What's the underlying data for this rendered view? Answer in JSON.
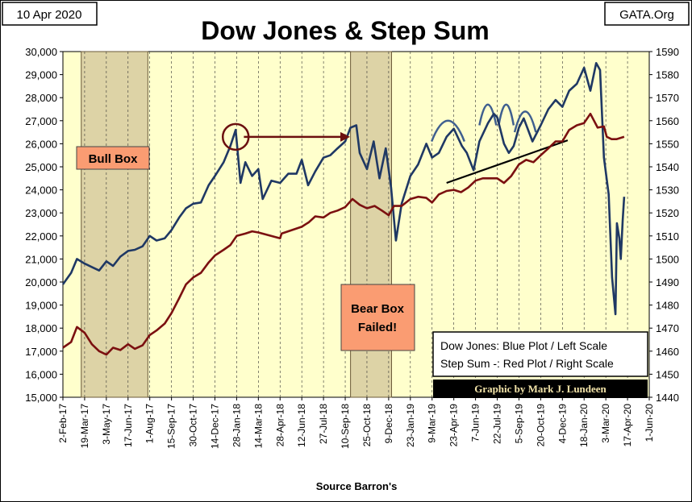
{
  "chart_data": {
    "type": "line",
    "title": "Dow Jones & Step Sum",
    "date_label": "10 Apr 2020",
    "source_badge": "GATA.Org",
    "xlabel": "Source Barron's",
    "x_ticks": [
      "2-Feb-17",
      "19-Mar-17",
      "3-May-17",
      "17-Jun-17",
      "1-Aug-17",
      "15-Sep-17",
      "30-Oct-17",
      "14-Dec-17",
      "28-Jan-18",
      "14-Mar-18",
      "28-Apr-18",
      "12-Jun-18",
      "27-Jul-18",
      "10-Sep-18",
      "25-Oct-18",
      "9-Dec-18",
      "23-Jan-19",
      "9-Mar-19",
      "23-Apr-19",
      "7-Jun-19",
      "22-Jul-19",
      "5-Sep-19",
      "20-Oct-19",
      "4-Dec-19",
      "18-Jan-20",
      "3-Mar-20",
      "17-Apr-20",
      "1-Jun-20"
    ],
    "y_left": {
      "min": 15000,
      "max": 30000,
      "step": 1000,
      "ticks": [
        "15,000",
        "16,000",
        "17,000",
        "18,000",
        "19,000",
        "20,000",
        "21,000",
        "22,000",
        "23,000",
        "24,000",
        "25,000",
        "26,000",
        "27,000",
        "28,000",
        "29,000",
        "30,000"
      ]
    },
    "y_right": {
      "min": 1440,
      "max": 1590,
      "step": 10,
      "ticks": [
        "1440",
        "1450",
        "1460",
        "1470",
        "1480",
        "1490",
        "1500",
        "1510",
        "1520",
        "1530",
        "1540",
        "1550",
        "1560",
        "1570",
        "1580",
        "1590"
      ]
    },
    "grid": "vertical",
    "series": [
      {
        "name": "Dow Jones",
        "axis": "left",
        "color": "#1f3864",
        "points": [
          [
            "2-Feb-17",
            19900
          ],
          [
            "19-Feb-17",
            20400
          ],
          [
            "3-Mar-17",
            21000
          ],
          [
            "19-Mar-17",
            20800
          ],
          [
            "3-Apr-17",
            20650
          ],
          [
            "18-Apr-17",
            20500
          ],
          [
            "3-May-17",
            20900
          ],
          [
            "17-May-17",
            20700
          ],
          [
            "1-Jun-17",
            21100
          ],
          [
            "17-Jun-17",
            21350
          ],
          [
            "1-Jul-17",
            21400
          ],
          [
            "17-Jul-17",
            21550
          ],
          [
            "1-Aug-17",
            22000
          ],
          [
            "15-Aug-17",
            21800
          ],
          [
            "1-Sep-17",
            21900
          ],
          [
            "15-Sep-17",
            22250
          ],
          [
            "1-Oct-17",
            22800
          ],
          [
            "15-Oct-17",
            23200
          ],
          [
            "30-Oct-17",
            23400
          ],
          [
            "15-Nov-17",
            23450
          ],
          [
            "1-Dec-17",
            24200
          ],
          [
            "14-Dec-17",
            24600
          ],
          [
            "1-Jan-18",
            25200
          ],
          [
            "15-Jan-18",
            25900
          ],
          [
            "26-Jan-18",
            26600
          ],
          [
            "5-Feb-18",
            24300
          ],
          [
            "15-Feb-18",
            25200
          ],
          [
            "1-Mar-18",
            24600
          ],
          [
            "14-Mar-18",
            24900
          ],
          [
            "23-Mar-18",
            23600
          ],
          [
            "10-Apr-18",
            24400
          ],
          [
            "28-Apr-18",
            24300
          ],
          [
            "15-May-18",
            24700
          ],
          [
            "1-Jun-18",
            24700
          ],
          [
            "12-Jun-18",
            25300
          ],
          [
            "25-Jun-18",
            24200
          ],
          [
            "10-Jul-18",
            24800
          ],
          [
            "27-Jul-18",
            25400
          ],
          [
            "10-Aug-18",
            25500
          ],
          [
            "25-Aug-18",
            25800
          ],
          [
            "10-Sep-18",
            26100
          ],
          [
            "21-Sep-18",
            26700
          ],
          [
            "3-Oct-18",
            26800
          ],
          [
            "10-Oct-18",
            25600
          ],
          [
            "25-Oct-18",
            24900
          ],
          [
            "8-Nov-18",
            26100
          ],
          [
            "20-Nov-18",
            24500
          ],
          [
            "3-Dec-18",
            25800
          ],
          [
            "14-Dec-18",
            24100
          ],
          [
            "24-Dec-18",
            21800
          ],
          [
            "5-Jan-19",
            23400
          ],
          [
            "23-Jan-19",
            24600
          ],
          [
            "8-Feb-19",
            25100
          ],
          [
            "25-Feb-19",
            26000
          ],
          [
            "9-Mar-19",
            25400
          ],
          [
            "23-Mar-19",
            25600
          ],
          [
            "8-Apr-19",
            26300
          ],
          [
            "23-Apr-19",
            26650
          ],
          [
            "10-May-19",
            25900
          ],
          [
            "20-May-19",
            25600
          ],
          [
            "3-Jun-19",
            24850
          ],
          [
            "15-Jun-19",
            26100
          ],
          [
            "3-Jul-19",
            26900
          ],
          [
            "15-Jul-19",
            27300
          ],
          [
            "22-Jul-19",
            27150
          ],
          [
            "5-Aug-19",
            26000
          ],
          [
            "15-Aug-19",
            25600
          ],
          [
            "25-Aug-19",
            25900
          ],
          [
            "5-Sep-19",
            26700
          ],
          [
            "15-Sep-19",
            27100
          ],
          [
            "3-Oct-19",
            26100
          ],
          [
            "20-Oct-19",
            26800
          ],
          [
            "5-Nov-19",
            27500
          ],
          [
            "20-Nov-19",
            27900
          ],
          [
            "4-Dec-19",
            27600
          ],
          [
            "18-Dec-19",
            28300
          ],
          [
            "3-Jan-20",
            28600
          ],
          [
            "18-Jan-20",
            29300
          ],
          [
            "31-Jan-20",
            28300
          ],
          [
            "12-Feb-20",
            29500
          ],
          [
            "20-Feb-20",
            29200
          ],
          [
            "28-Feb-20",
            25400
          ],
          [
            "9-Mar-20",
            23800
          ],
          [
            "16-Mar-20",
            20200
          ],
          [
            "23-Mar-20",
            18600
          ],
          [
            "26-Mar-20",
            22550
          ],
          [
            "31-Mar-20",
            21900
          ],
          [
            "3-Apr-20",
            21000
          ],
          [
            "7-Apr-20",
            22700
          ],
          [
            "10-Apr-20",
            23700
          ]
        ]
      },
      {
        "name": "Step Sum",
        "axis": "right",
        "color": "#7b1010",
        "points": [
          [
            "2-Feb-17",
            1461.5
          ],
          [
            "19-Feb-17",
            1464
          ],
          [
            "3-Mar-17",
            1470.5
          ],
          [
            "19-Mar-17",
            1468
          ],
          [
            "3-Apr-17",
            1463
          ],
          [
            "18-Apr-17",
            1460
          ],
          [
            "3-May-17",
            1458.5
          ],
          [
            "17-May-17",
            1461.5
          ],
          [
            "1-Jun-17",
            1460.5
          ],
          [
            "17-Jun-17",
            1463
          ],
          [
            "1-Jul-17",
            1461
          ],
          [
            "17-Jul-17",
            1462.5
          ],
          [
            "1-Aug-17",
            1467
          ],
          [
            "15-Aug-17",
            1469
          ],
          [
            "1-Sep-17",
            1472
          ],
          [
            "15-Sep-17",
            1476.5
          ],
          [
            "1-Oct-17",
            1483
          ],
          [
            "15-Oct-17",
            1489
          ],
          [
            "30-Oct-17",
            1492
          ],
          [
            "15-Nov-17",
            1494
          ],
          [
            "1-Dec-17",
            1498.5
          ],
          [
            "14-Dec-17",
            1501.5
          ],
          [
            "1-Jan-18",
            1504
          ],
          [
            "15-Jan-18",
            1506
          ],
          [
            "28-Jan-18",
            1510
          ],
          [
            "15-Feb-18",
            1511
          ],
          [
            "1-Mar-18",
            1512
          ],
          [
            "14-Mar-18",
            1511.5
          ],
          [
            "28-Apr-18",
            1509
          ],
          [
            "1-May-18",
            1511
          ],
          [
            "12-Jun-18",
            1514
          ],
          [
            "27-Jun-18",
            1516
          ],
          [
            "10-Jul-18",
            1518.5
          ],
          [
            "27-Jul-18",
            1518
          ],
          [
            "10-Aug-18",
            1520
          ],
          [
            "25-Aug-18",
            1521
          ],
          [
            "10-Sep-18",
            1522.5
          ],
          [
            "25-Sep-18",
            1526
          ],
          [
            "10-Oct-18",
            1523.5
          ],
          [
            "25-Oct-18",
            1522
          ],
          [
            "10-Nov-18",
            1523
          ],
          [
            "25-Nov-18",
            1521
          ],
          [
            "9-Dec-18",
            1519
          ],
          [
            "20-Dec-18",
            1523
          ],
          [
            "5-Jan-19",
            1523
          ],
          [
            "23-Jan-19",
            1526
          ],
          [
            "8-Feb-19",
            1527
          ],
          [
            "25-Feb-19",
            1526.5
          ],
          [
            "9-Mar-19",
            1524.5
          ],
          [
            "23-Mar-19",
            1528
          ],
          [
            "8-Apr-19",
            1529.5
          ],
          [
            "23-Apr-19",
            1530
          ],
          [
            "8-May-19",
            1529
          ],
          [
            "23-May-19",
            1531
          ],
          [
            "7-Jun-19",
            1534
          ],
          [
            "22-Jun-19",
            1535
          ],
          [
            "7-Jul-19",
            1535
          ],
          [
            "22-Jul-19",
            1535
          ],
          [
            "5-Aug-19",
            1533
          ],
          [
            "20-Aug-19",
            1536
          ],
          [
            "5-Sep-19",
            1541
          ],
          [
            "20-Sep-19",
            1543
          ],
          [
            "5-Oct-19",
            1542
          ],
          [
            "20-Oct-19",
            1545
          ],
          [
            "5-Nov-19",
            1548
          ],
          [
            "20-Nov-19",
            1551
          ],
          [
            "4-Dec-19",
            1551
          ],
          [
            "18-Dec-19",
            1556
          ],
          [
            "3-Jan-20",
            1558
          ],
          [
            "18-Jan-20",
            1559
          ],
          [
            "31-Jan-20",
            1563
          ],
          [
            "15-Feb-20",
            1557
          ],
          [
            "28-Feb-20",
            1557.5
          ],
          [
            "5-Mar-20",
            1553
          ],
          [
            "15-Mar-20",
            1552
          ],
          [
            "25-Mar-20",
            1552
          ],
          [
            "10-Apr-20",
            1553
          ]
        ]
      }
    ],
    "annotations": {
      "bull_box": {
        "label": "Bull Box",
        "from": "12-Mar-17",
        "to": "28-Jul-17"
      },
      "bear_box": {
        "label_line1": "Bear Box",
        "label_line2": "Failed!",
        "from": "21-Sep-18",
        "to": "15-Dec-18"
      },
      "circle_at": [
        "26-Jan-18",
        26300
      ],
      "arrow": {
        "from": [
          "12-Feb-18",
          26300
        ],
        "to": [
          "20-Sep-18",
          26300
        ]
      },
      "trendline": {
        "from": [
          "8-Apr-19",
          24300
        ],
        "to": [
          "15-Dec-19",
          26150
        ]
      },
      "arches": [
        {
          "from": "8-Mar-19",
          "to": "15-May-19",
          "peak": 27000
        },
        {
          "from": "15-Jun-19",
          "to": "20-Jul-19",
          "peak": 27700
        },
        {
          "from": "25-Jul-19",
          "to": "25-Aug-19",
          "peak": 27700
        },
        {
          "from": "27-Aug-19",
          "to": "10-Oct-19",
          "peak": 27400
        }
      ]
    },
    "legend": {
      "placement": "bottom-right",
      "line1": "Dow Jones: Blue Plot / Left Scale",
      "line2": "Step Sum -: Red Plot / Right Scale"
    },
    "credit": "Graphic by Mark J. Lundeen"
  },
  "colors": {
    "plot_bg": "#ffffcc",
    "box_fill": "#ddd3a6",
    "label_box": "#fa9c72",
    "dow": "#1f3864",
    "step": "#7b1010",
    "trend": "#000000",
    "arch": "#3f5f8f"
  }
}
